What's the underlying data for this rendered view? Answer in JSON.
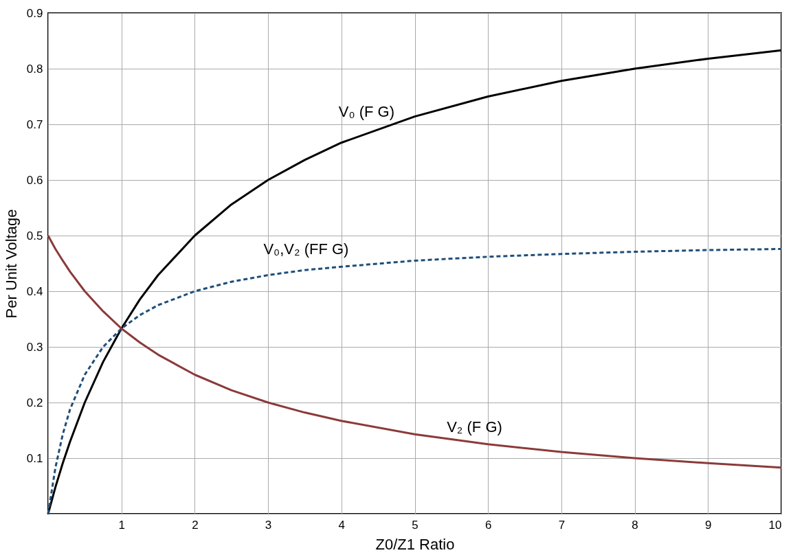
{
  "chart_data": {
    "type": "line",
    "xlabel": "Z0/Z1 Ratio",
    "ylabel": "Per Unit Voltage",
    "x": [
      0,
      0.1,
      0.2,
      0.3,
      0.5,
      0.75,
      1,
      1.25,
      1.5,
      2,
      2.5,
      3,
      3.5,
      4,
      5,
      6,
      7,
      8,
      9,
      10
    ],
    "series": [
      {
        "name": "V₀ (F G)",
        "color": "#000000",
        "line_style": "solid",
        "values": [
          0,
          0.048,
          0.091,
          0.13,
          0.2,
          0.273,
          0.333,
          0.385,
          0.429,
          0.5,
          0.556,
          0.6,
          0.636,
          0.667,
          0.714,
          0.75,
          0.778,
          0.8,
          0.818,
          0.833
        ]
      },
      {
        "name": "V₀,V₂ (FF G)",
        "color": "#1f4e79",
        "line_style": "dashed",
        "values": [
          0,
          0.083,
          0.143,
          0.188,
          0.25,
          0.3,
          0.333,
          0.357,
          0.375,
          0.4,
          0.417,
          0.429,
          0.438,
          0.444,
          0.455,
          0.462,
          0.467,
          0.471,
          0.474,
          0.476
        ]
      },
      {
        "name": "V₂ (F G)",
        "color": "#8b3a3a",
        "line_style": "solid",
        "values": [
          0.5,
          0.476,
          0.455,
          0.435,
          0.4,
          0.364,
          0.333,
          0.308,
          0.286,
          0.25,
          0.222,
          0.2,
          0.182,
          0.167,
          0.143,
          0.125,
          0.111,
          0.1,
          0.091,
          0.083
        ]
      }
    ],
    "xlim": [
      0,
      10
    ],
    "xticks": [
      {
        "value": 0,
        "label": null
      },
      1,
      2,
      3,
      4,
      5,
      6,
      7,
      8,
      9,
      10
    ],
    "ylim": [
      0,
      0.9
    ],
    "yticks": [
      {
        "value": 0,
        "label": null
      },
      0.1,
      0.2,
      0.3,
      0.4,
      0.5,
      0.6,
      0.7,
      0.8,
      0.9
    ],
    "grid": true,
    "marker": "none"
  }
}
